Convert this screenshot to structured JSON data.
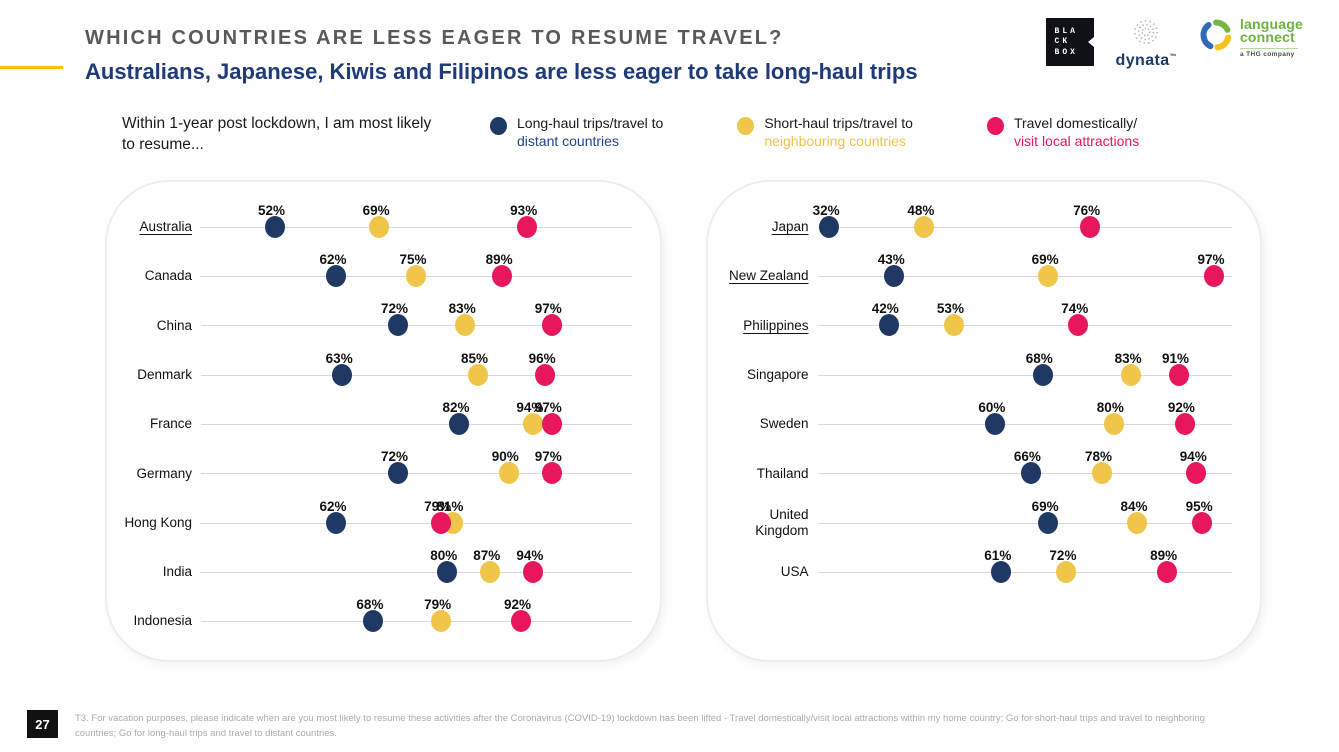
{
  "header": {
    "title": "WHICH COUNTRIES ARE LESS EAGER TO RESUME TRAVEL?",
    "subtitle": "Australians, Japanese, Kiwis and Filipinos are less eager to take long-haul trips"
  },
  "logos": {
    "blackbox_lines": [
      "BLA",
      "CK",
      "BOX"
    ],
    "dynata_label": "dynata",
    "language_connect_line1": "language",
    "language_connect_line2": "connect",
    "language_connect_sub": "a THG company"
  },
  "legend": {
    "prompt": "Within 1-year post lockdown, I am most likely to resume...",
    "items": [
      {
        "key": "long_haul",
        "line1": "Long-haul trips/travel to",
        "line2": "distant countries",
        "color": "#1F3864",
        "text_color": "#24448E"
      },
      {
        "key": "short_haul",
        "line1": "Short-haul trips/travel to",
        "line2": "neighbouring countries",
        "color": "#F0C64A",
        "text_color": "#F0C24B"
      },
      {
        "key": "domestic",
        "line1": "Travel domestically/",
        "line2": "visit local attractions",
        "color": "#E8175D",
        "text_color": "#E8175D"
      }
    ]
  },
  "chart_data": {
    "type": "scatter",
    "subtype": "dot-plot",
    "unit": "%",
    "legend_position": "top",
    "grid": "one horizontal line per country row",
    "series": [
      {
        "key": "long_haul",
        "name": "Long-haul trips/travel to distant countries",
        "color": "#1F3864"
      },
      {
        "key": "short_haul",
        "name": "Short-haul trips/travel to neighbouring countries",
        "color": "#F0C64A"
      },
      {
        "key": "domestic",
        "name": "Travel domestically/visit local attractions",
        "color": "#E8175D"
      }
    ],
    "panels": [
      {
        "name": "left",
        "axis_range": [
          40,
          110
        ],
        "rows": [
          {
            "country": "Australia",
            "underlined": true,
            "values": {
              "long_haul": 52,
              "short_haul": 69,
              "domestic": 93
            }
          },
          {
            "country": "Canada",
            "underlined": false,
            "values": {
              "long_haul": 62,
              "short_haul": 75,
              "domestic": 89
            }
          },
          {
            "country": "China",
            "underlined": false,
            "values": {
              "long_haul": 72,
              "short_haul": 83,
              "domestic": 97
            }
          },
          {
            "country": "Denmark",
            "underlined": false,
            "values": {
              "long_haul": 63,
              "short_haul": 85,
              "domestic": 96
            }
          },
          {
            "country": "France",
            "underlined": false,
            "values": {
              "long_haul": 82,
              "short_haul": 94,
              "domestic": 97
            }
          },
          {
            "country": "Germany",
            "underlined": false,
            "values": {
              "long_haul": 72,
              "short_haul": 90,
              "domestic": 97
            }
          },
          {
            "country": "Hong Kong",
            "underlined": false,
            "values": {
              "long_haul": 62,
              "short_haul": 81,
              "domestic": 79
            }
          },
          {
            "country": "India",
            "underlined": false,
            "values": {
              "long_haul": 80,
              "short_haul": 87,
              "domestic": 94
            }
          },
          {
            "country": "Indonesia",
            "underlined": false,
            "values": {
              "long_haul": 68,
              "short_haul": 79,
              "domestic": 92
            }
          }
        ]
      },
      {
        "name": "right",
        "axis_range": [
          30,
          100
        ],
        "rows": [
          {
            "country": "Japan",
            "underlined": true,
            "values": {
              "long_haul": 32,
              "short_haul": 48,
              "domestic": 76
            }
          },
          {
            "country": "New Zealand",
            "underlined": true,
            "values": {
              "long_haul": 43,
              "short_haul": 69,
              "domestic": 97
            }
          },
          {
            "country": "Philippines",
            "underlined": true,
            "values": {
              "long_haul": 42,
              "short_haul": 53,
              "domestic": 74
            }
          },
          {
            "country": "Singapore",
            "underlined": false,
            "values": {
              "long_haul": 68,
              "short_haul": 83,
              "domestic": 91
            }
          },
          {
            "country": "Sweden",
            "underlined": false,
            "values": {
              "long_haul": 60,
              "short_haul": 80,
              "domestic": 92
            }
          },
          {
            "country": "Thailand",
            "underlined": false,
            "values": {
              "long_haul": 66,
              "short_haul": 78,
              "domestic": 94
            }
          },
          {
            "country": "United Kingdom",
            "underlined": false,
            "values": {
              "long_haul": 69,
              "short_haul": 84,
              "domestic": 95
            }
          },
          {
            "country": "USA",
            "underlined": false,
            "values": {
              "long_haul": 61,
              "short_haul": 72,
              "domestic": 89
            }
          }
        ]
      }
    ]
  },
  "footer": {
    "page_number": "27",
    "note": "T3. For vacation purposes, please indicate when are you most likely to resume these activities after the Coronavirus (COVID-19) lockdown has been lifted - Travel domestically/visit local attractions within my home country; Go for short-haul trips and travel to neighboring countries; Go for long-haul trips and travel to distant countries."
  }
}
